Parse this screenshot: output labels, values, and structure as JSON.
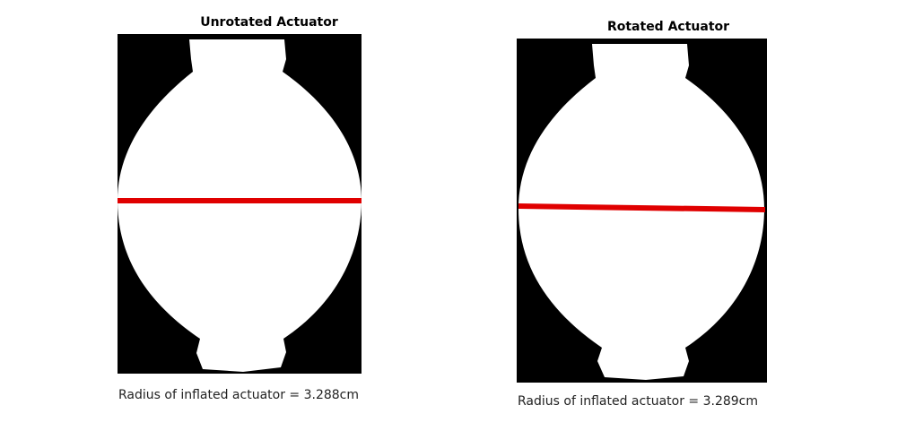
{
  "panels": [
    {
      "title": "Unrotated Actuator",
      "caption": "Radius of inflated actuator = 3.288cm"
    },
    {
      "title": "Rotated Actuator",
      "caption": "Radius of inflated actuator = 3.289cm"
    }
  ],
  "colors": {
    "background": "#000000",
    "actuator": "#ffffff",
    "measurement_line": "#e00000"
  }
}
